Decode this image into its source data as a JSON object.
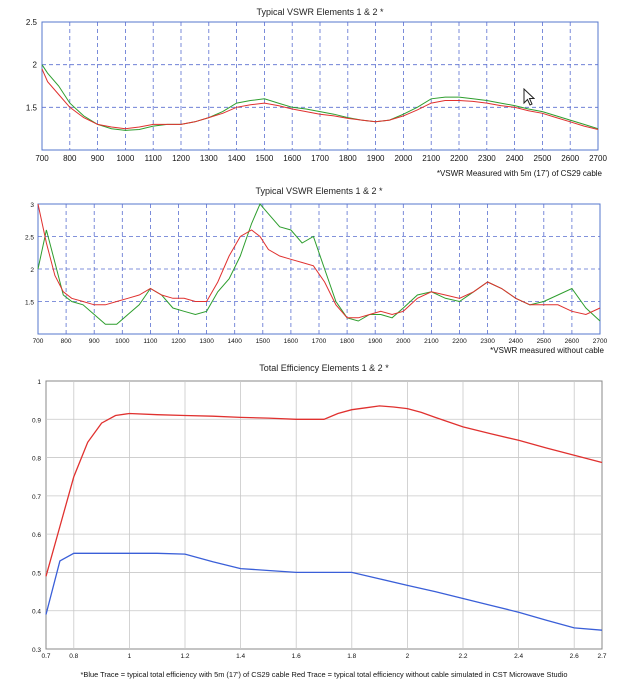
{
  "chart_data": [
    {
      "type": "line",
      "title": "Typical VSWR Elements 1 & 2 *",
      "note": "*VSWR Measured with 5m (17') of CS29 cable",
      "xlim": [
        700,
        2700
      ],
      "ylim": [
        1.0,
        2.5
      ],
      "x_ticks": [
        "700",
        "800",
        "900",
        "1000",
        "1100",
        "1200",
        "1300",
        "1400",
        "1500",
        "1600",
        "1700",
        "1800",
        "1900",
        "2000",
        "2100",
        "2200",
        "2300",
        "2400",
        "2500",
        "2600",
        "2700"
      ],
      "y_ticks": [
        "1.5",
        "2",
        "2.5"
      ],
      "grid": true,
      "series": [
        {
          "color": "#2e9e2e",
          "x": [
            700,
            720,
            760,
            800,
            850,
            900,
            950,
            1000,
            1050,
            1100,
            1150,
            1200,
            1250,
            1300,
            1350,
            1400,
            1450,
            1500,
            1550,
            1600,
            1650,
            1700,
            1750,
            1800,
            1850,
            1900,
            1950,
            2000,
            2050,
            2100,
            2150,
            2200,
            2250,
            2300,
            2350,
            2400,
            2450,
            2500,
            2550,
            2600,
            2650,
            2700
          ],
          "y": [
            2.0,
            1.9,
            1.75,
            1.55,
            1.4,
            1.3,
            1.25,
            1.23,
            1.24,
            1.28,
            1.3,
            1.3,
            1.33,
            1.38,
            1.45,
            1.55,
            1.58,
            1.6,
            1.55,
            1.5,
            1.48,
            1.45,
            1.42,
            1.38,
            1.35,
            1.33,
            1.35,
            1.42,
            1.5,
            1.6,
            1.62,
            1.62,
            1.6,
            1.58,
            1.55,
            1.52,
            1.48,
            1.45,
            1.4,
            1.35,
            1.3,
            1.25
          ]
        },
        {
          "color": "#e0312f",
          "x": [
            700,
            720,
            760,
            800,
            850,
            900,
            950,
            1000,
            1050,
            1100,
            1150,
            1200,
            1250,
            1300,
            1350,
            1400,
            1450,
            1500,
            1550,
            1600,
            1650,
            1700,
            1750,
            1800,
            1850,
            1900,
            1950,
            2000,
            2050,
            2100,
            2150,
            2200,
            2250,
            2300,
            2350,
            2400,
            2450,
            2500,
            2550,
            2600,
            2650,
            2700
          ],
          "y": [
            1.95,
            1.8,
            1.65,
            1.5,
            1.38,
            1.3,
            1.27,
            1.25,
            1.27,
            1.3,
            1.3,
            1.3,
            1.33,
            1.38,
            1.43,
            1.5,
            1.53,
            1.55,
            1.52,
            1.48,
            1.45,
            1.42,
            1.4,
            1.37,
            1.35,
            1.33,
            1.35,
            1.4,
            1.47,
            1.55,
            1.58,
            1.58,
            1.57,
            1.55,
            1.52,
            1.5,
            1.46,
            1.43,
            1.38,
            1.33,
            1.28,
            1.24
          ]
        }
      ]
    },
    {
      "type": "line",
      "title": "Typical VSWR Elements 1 & 2 *",
      "note": "*VSWR measured without cable",
      "xlim": [
        700,
        2700
      ],
      "ylim": [
        1.0,
        3.0
      ],
      "x_ticks": [
        "700",
        "800",
        "900",
        "1000",
        "1100",
        "1200",
        "1300",
        "1400",
        "1500",
        "1600",
        "1700",
        "1800",
        "1900",
        "2000",
        "2100",
        "2200",
        "2300",
        "2400",
        "2500",
        "2600",
        "2700"
      ],
      "y_ticks": [
        "1.5",
        "2",
        "2.5",
        "3"
      ],
      "grid": true,
      "series": [
        {
          "color": "#2e9e2e",
          "x": [
            700,
            730,
            760,
            790,
            820,
            860,
            900,
            940,
            980,
            1020,
            1060,
            1100,
            1140,
            1180,
            1220,
            1260,
            1300,
            1340,
            1380,
            1420,
            1460,
            1490,
            1520,
            1560,
            1600,
            1640,
            1680,
            1720,
            1760,
            1800,
            1840,
            1880,
            1920,
            1960,
            2000,
            2050,
            2100,
            2150,
            2200,
            2250,
            2300,
            2350,
            2400,
            2450,
            2500,
            2550,
            2600,
            2650,
            2700
          ],
          "y": [
            2.0,
            2.6,
            2.1,
            1.6,
            1.5,
            1.45,
            1.3,
            1.15,
            1.15,
            1.3,
            1.45,
            1.7,
            1.6,
            1.4,
            1.35,
            1.3,
            1.35,
            1.65,
            1.85,
            2.2,
            2.7,
            3.0,
            2.85,
            2.65,
            2.6,
            2.4,
            2.5,
            2.0,
            1.5,
            1.25,
            1.2,
            1.3,
            1.3,
            1.25,
            1.4,
            1.6,
            1.65,
            1.55,
            1.5,
            1.65,
            1.8,
            1.7,
            1.55,
            1.45,
            1.5,
            1.6,
            1.7,
            1.4,
            1.2
          ]
        },
        {
          "color": "#e0312f",
          "x": [
            700,
            730,
            760,
            790,
            820,
            860,
            900,
            940,
            980,
            1020,
            1060,
            1100,
            1140,
            1180,
            1220,
            1260,
            1300,
            1340,
            1380,
            1420,
            1460,
            1490,
            1520,
            1560,
            1600,
            1640,
            1680,
            1720,
            1760,
            1800,
            1840,
            1880,
            1920,
            1960,
            2000,
            2050,
            2100,
            2150,
            2200,
            2250,
            2300,
            2350,
            2400,
            2450,
            2500,
            2550,
            2600,
            2650,
            2700
          ],
          "y": [
            3.0,
            2.4,
            1.9,
            1.65,
            1.55,
            1.5,
            1.45,
            1.45,
            1.5,
            1.55,
            1.6,
            1.7,
            1.6,
            1.55,
            1.55,
            1.5,
            1.5,
            1.8,
            2.2,
            2.5,
            2.6,
            2.5,
            2.3,
            2.2,
            2.15,
            2.1,
            2.05,
            1.8,
            1.45,
            1.25,
            1.25,
            1.3,
            1.35,
            1.3,
            1.35,
            1.55,
            1.65,
            1.6,
            1.55,
            1.65,
            1.8,
            1.7,
            1.55,
            1.45,
            1.45,
            1.45,
            1.35,
            1.3,
            1.4
          ]
        }
      ]
    },
    {
      "type": "line",
      "title": "Total Efficiency Elements 1 & 2 *",
      "note": "*Blue Trace = typical total efficiency with 5m (17') of CS29 cable Red Trace = typical total efficiency without cable simulated in CST Microwave Studio",
      "xlim": [
        0.7,
        2.7
      ],
      "ylim": [
        0.3,
        1.0
      ],
      "x_ticks": [
        "0.7",
        "0.8",
        "1",
        "1.2",
        "1.4",
        "1.6",
        "1.8",
        "2",
        "2.2",
        "2.4",
        "2.6",
        "2.7"
      ],
      "y_ticks": [
        "0.3",
        "0.4",
        "0.5",
        "0.6",
        "0.7",
        "0.8",
        "0.9",
        "1"
      ],
      "grid": true,
      "series": [
        {
          "color": "#e0312f",
          "x": [
            0.7,
            0.75,
            0.8,
            0.85,
            0.9,
            0.95,
            1.0,
            1.1,
            1.2,
            1.3,
            1.4,
            1.5,
            1.6,
            1.7,
            1.75,
            1.8,
            1.85,
            1.9,
            1.95,
            2.0,
            2.05,
            2.1,
            2.2,
            2.3,
            2.4,
            2.5,
            2.6,
            2.7
          ],
          "y": [
            0.49,
            0.62,
            0.75,
            0.84,
            0.89,
            0.91,
            0.915,
            0.912,
            0.91,
            0.908,
            0.905,
            0.903,
            0.9,
            0.9,
            0.915,
            0.925,
            0.93,
            0.935,
            0.932,
            0.928,
            0.918,
            0.905,
            0.88,
            0.862,
            0.845,
            0.825,
            0.806,
            0.787
          ]
        },
        {
          "color": "#3a5fd8",
          "x": [
            0.7,
            0.75,
            0.8,
            0.9,
            1.0,
            1.1,
            1.2,
            1.3,
            1.4,
            1.5,
            1.6,
            1.7,
            1.8,
            1.9,
            2.0,
            2.1,
            2.2,
            2.3,
            2.4,
            2.5,
            2.6,
            2.7
          ],
          "y": [
            0.39,
            0.53,
            0.55,
            0.55,
            0.55,
            0.55,
            0.548,
            0.528,
            0.51,
            0.505,
            0.5,
            0.5,
            0.5,
            0.483,
            0.466,
            0.45,
            0.432,
            0.414,
            0.396,
            0.375,
            0.355,
            0.349
          ]
        }
      ]
    }
  ]
}
